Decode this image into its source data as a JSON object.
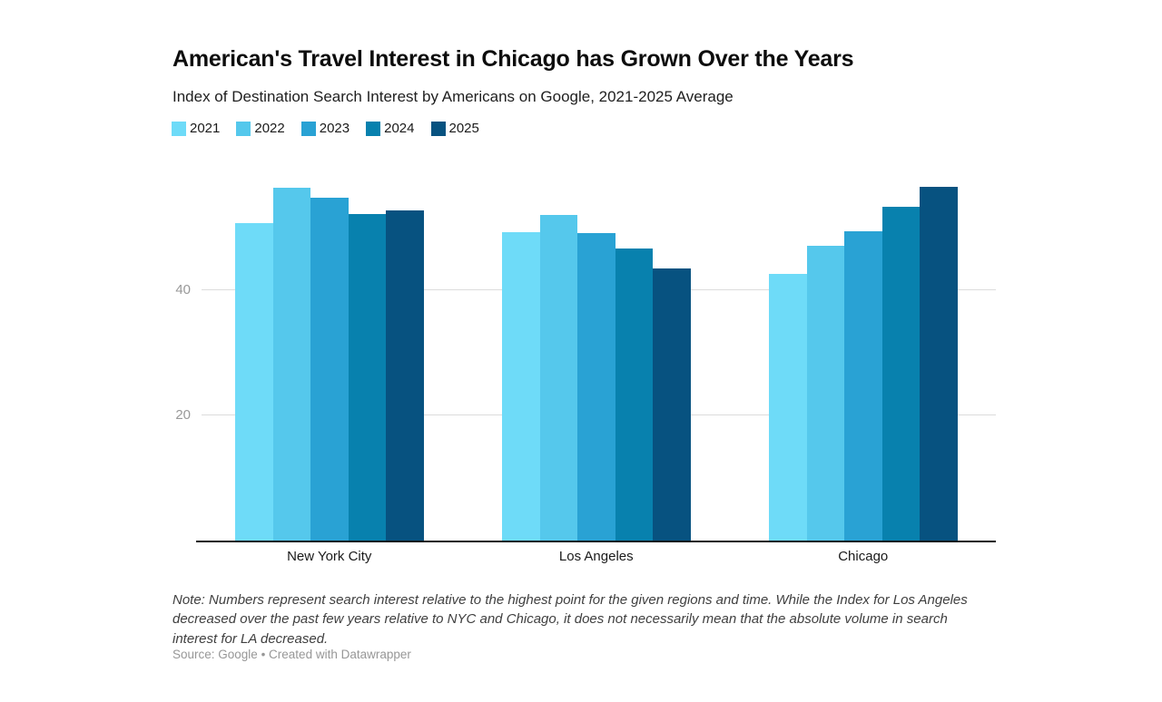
{
  "header": {
    "title": "American's Travel Interest in Chicago has Grown Over the Years",
    "subtitle": "Index of Destination Search Interest by Americans on Google, 2021-2025 Average"
  },
  "chart_data": {
    "type": "bar",
    "title": "American's Travel Interest in Chicago has Grown Over the Years",
    "subtitle": "Index of Destination Search Interest by Americans on Google, 2021-2025 Average",
    "categories": [
      "New York City",
      "Los Angeles",
      "Chicago"
    ],
    "series": [
      {
        "name": "2021",
        "color": "#6EDBF8",
        "values": [
          50.7,
          49.3,
          42.6
        ]
      },
      {
        "name": "2022",
        "color": "#55C8EC",
        "values": [
          56.4,
          52.0,
          47.2
        ]
      },
      {
        "name": "2023",
        "color": "#29A2D4",
        "values": [
          54.8,
          49.2,
          49.4
        ]
      },
      {
        "name": "2024",
        "color": "#0881AE",
        "values": [
          52.2,
          46.7,
          53.3
        ]
      },
      {
        "name": "2025",
        "color": "#075280",
        "values": [
          52.8,
          43.5,
          56.5
        ]
      }
    ],
    "ylim": [
      0,
      58
    ],
    "yticks": [
      20,
      40
    ],
    "grid": "horizontal-only",
    "legend_position": "top-left",
    "xlabel": "",
    "ylabel": ""
  },
  "footer": {
    "note": "Note: Numbers represent search interest relative to the highest point for the given regions and time. While the Index for Los Angeles decreased over the past few years relative to NYC and Chicago, it does not necessarily mean that the absolute volume in search interest for LA decreased.",
    "source": "Source: Google",
    "separator": " • ",
    "credit": "Created with Datawrapper"
  }
}
